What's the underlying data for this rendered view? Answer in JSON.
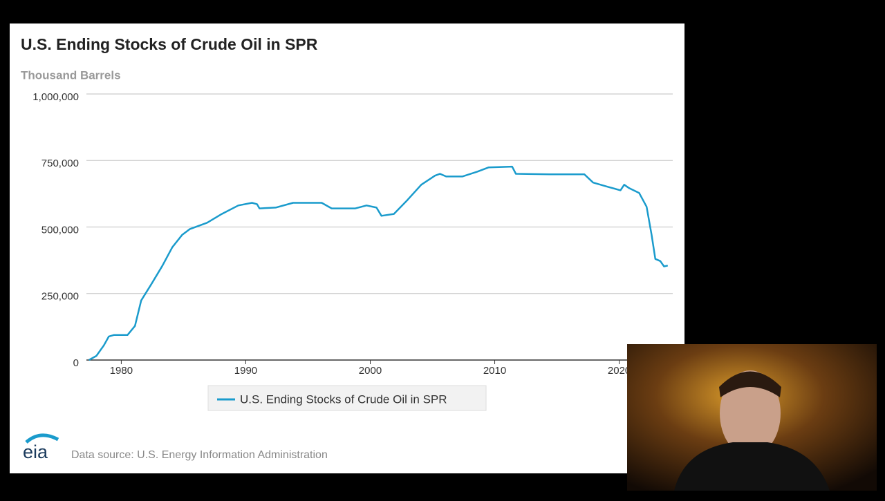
{
  "chart_data": {
    "type": "line",
    "title": "U.S. Ending Stocks of Crude Oil in SPR",
    "y_label": "Thousand Barrels",
    "source": "Data source: U.S. Energy Information Administration",
    "logo": "eia",
    "xlim": [
      1977.2,
      2024.3
    ],
    "xticks": [
      1980,
      1990,
      2000,
      2010,
      2020
    ],
    "ylim": [
      0,
      1000000
    ],
    "yticks": [
      0,
      {
        "value": 250000,
        "label": "250,000"
      },
      {
        "value": 500000,
        "label": "500,000"
      },
      {
        "value": 750000,
        "label": "750,000"
      },
      {
        "value": 1000000,
        "label": "1,000,000"
      }
    ],
    "grid": true,
    "x": [
      1977.4,
      1978.0,
      1978.6,
      1979.0,
      1979.4,
      1980.5,
      1981.1,
      1981.6,
      1982.4,
      1983.3,
      1984.1,
      1984.9,
      1985.5,
      1986.9,
      1988.0,
      1989.4,
      1990.5,
      1990.9,
      1991.1,
      1992.4,
      1993.8,
      1996.1,
      1996.9,
      1998.8,
      1999.7,
      2000.5,
      2000.9,
      2001.9,
      2003.0,
      2004.1,
      2005.2,
      2005.6,
      2006.1,
      2007.4,
      2008.6,
      2009.5,
      2011.4,
      2011.7,
      2014.4,
      2017.2,
      2017.9,
      2019.1,
      2020.1,
      2020.4,
      2020.8,
      2021.6,
      2022.2,
      2022.6,
      2022.9,
      2023.3,
      2023.6,
      2023.9
    ],
    "series": [
      {
        "name": "U.S. Ending Stocks of Crude Oil in SPR",
        "color": "#1a9bcc",
        "values": [
          0,
          15600,
          55000,
          88500,
          94000,
          94000,
          128000,
          224000,
          284000,
          354000,
          424000,
          471000,
          492000,
          516000,
          547000,
          581000,
          591000,
          586000,
          570000,
          573000,
          591000,
          591000,
          570000,
          570000,
          581000,
          573000,
          542000,
          549000,
          602000,
          659000,
          693000,
          700000,
          690000,
          690000,
          708000,
          724000,
          727000,
          700000,
          698000,
          698000,
          667000,
          651000,
          638000,
          659000,
          646000,
          628000,
          576000,
          471000,
          380000,
          372000,
          352000,
          355000
        ]
      }
    ]
  }
}
